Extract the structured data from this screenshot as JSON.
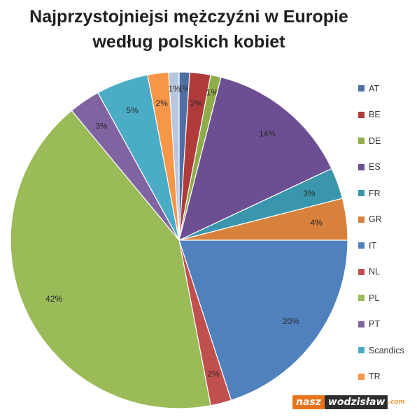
{
  "page": {
    "title_line1": "Najprzystojniejsi mężczyźni w Europie",
    "title_line2": "według polskich kobiet"
  },
  "watermark": {
    "part1": "nasz",
    "part2": "wodzisław",
    "part3": ".com"
  },
  "chart_data": {
    "type": "pie",
    "title": "Najprzystojniejsi mężczyźni w Europie według polskich kobiet",
    "legend_position": "right",
    "slices": [
      {
        "label": "AT",
        "value": 1,
        "display": "1%",
        "color": "#4f6ea3"
      },
      {
        "label": "BE",
        "value": 2,
        "display": "2%",
        "color": "#b03b3b"
      },
      {
        "label": "DE",
        "value": 1,
        "display": "1%",
        "color": "#8fac4a"
      },
      {
        "label": "ES",
        "value": 14,
        "display": "14%",
        "color": "#6d4e93"
      },
      {
        "label": "FR",
        "value": 3,
        "display": "3%",
        "color": "#3a96ac"
      },
      {
        "label": "GR",
        "value": 4,
        "display": "4%",
        "color": "#d8813c"
      },
      {
        "label": "IT",
        "value": 20,
        "display": "20%",
        "color": "#4f81bd"
      },
      {
        "label": "NL",
        "value": 2,
        "display": "2%",
        "color": "#c0504d"
      },
      {
        "label": "PL",
        "value": 42,
        "display": "42%",
        "color": "#9bbb59"
      },
      {
        "label": "PT",
        "value": 3,
        "display": "3%",
        "color": "#8064a2"
      },
      {
        "label": "Scandics",
        "value": 5,
        "display": "5%",
        "color": "#4bacc6"
      },
      {
        "label": "TR",
        "value": 2,
        "display": "2%",
        "color": "#f79646"
      },
      {
        "label": "",
        "value": 1,
        "display": "1%",
        "color": "#b7c7e0"
      }
    ]
  }
}
